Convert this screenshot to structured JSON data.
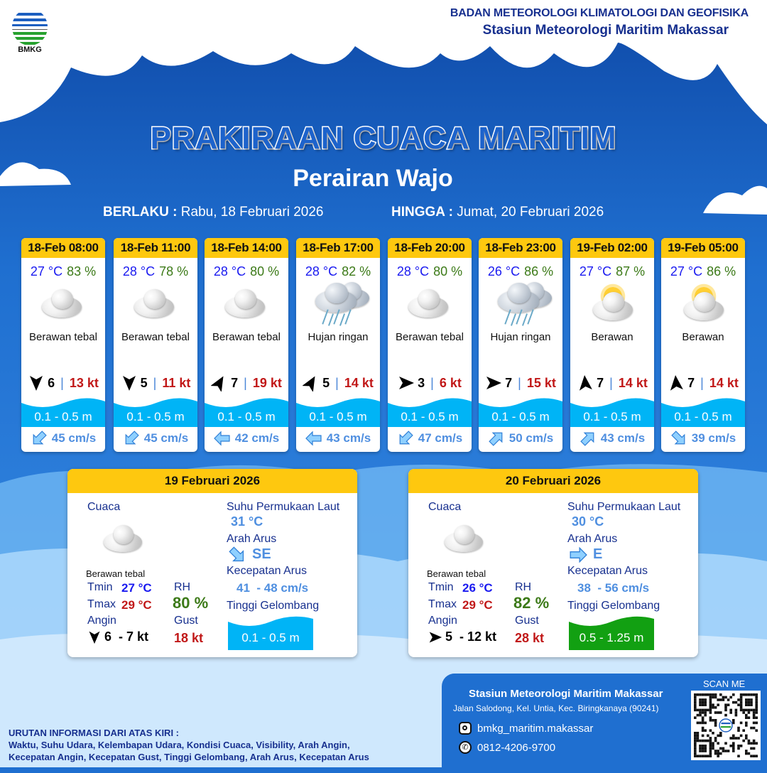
{
  "header": {
    "logo_text": "BMKG",
    "org_line1": "BADAN METEOROLOGI KLIMATOLOGI DAN GEOFISIKA",
    "org_line2": "Stasiun Meteorologi Maritim Makassar"
  },
  "title": "PRAKIRAAN CUACA MARITIM",
  "subtitle": "Perairan Wajo",
  "validity": {
    "from_label": "BERLAKU :",
    "from_value": "Rabu, 18 Februari 2026",
    "to_label": "HINGGA :",
    "to_value": "Jumat, 20 Februari 2026"
  },
  "colors": {
    "header_yellow": "#fec80f",
    "wave_blue": "#00b4f6",
    "wave_green": "#12a012",
    "temp_blue": "#1a1af0",
    "rh_green": "#3c7a18",
    "gust_red": "#c11818"
  },
  "forecasts": [
    {
      "time": "18-Feb 08:00",
      "temp": "27 °C",
      "rh": "83 %",
      "icon": "cloudy-icon",
      "weather": "Berawan tebal",
      "wind_dir": "S",
      "wind_speed": "6",
      "gust": "13 kt",
      "wave": "0.1 - 0.5 m",
      "current_dir": "SW",
      "current_speed": "45 cm/s"
    },
    {
      "time": "18-Feb 11:00",
      "temp": "28 °C",
      "rh": "78 %",
      "icon": "cloudy-icon",
      "weather": "Berawan tebal",
      "wind_dir": "S",
      "wind_speed": "5",
      "gust": "11 kt",
      "wave": "0.1 - 0.5 m",
      "current_dir": "SW",
      "current_speed": "45 cm/s"
    },
    {
      "time": "18-Feb 14:00",
      "temp": "28 °C",
      "rh": "80 %",
      "icon": "cloudy-icon",
      "weather": "Berawan tebal",
      "wind_dir": "NE",
      "wind_speed": "7",
      "gust": "19 kt",
      "wave": "0.1 - 0.5 m",
      "current_dir": "W",
      "current_speed": "42 cm/s"
    },
    {
      "time": "18-Feb 17:00",
      "temp": "28 °C",
      "rh": "82 %",
      "icon": "rain-icon",
      "weather": "Hujan ringan",
      "wind_dir": "NE",
      "wind_speed": "5",
      "gust": "14 kt",
      "wave": "0.1 - 0.5 m",
      "current_dir": "W",
      "current_speed": "43 cm/s"
    },
    {
      "time": "18-Feb 20:00",
      "temp": "28 °C",
      "rh": "80 %",
      "icon": "cloudy-icon",
      "weather": "Berawan tebal",
      "wind_dir": "E",
      "wind_speed": "3",
      "gust": "6 kt",
      "wave": "0.1 - 0.5 m",
      "current_dir": "SW",
      "current_speed": "47 cm/s"
    },
    {
      "time": "18-Feb 23:00",
      "temp": "26 °C",
      "rh": "86 %",
      "icon": "rain-icon",
      "weather": "Hujan ringan",
      "wind_dir": "E",
      "wind_speed": "7",
      "gust": "15 kt",
      "wave": "0.1 - 0.5 m",
      "current_dir": "NE",
      "current_speed": "50 cm/s"
    },
    {
      "time": "19-Feb 02:00",
      "temp": "27 °C",
      "rh": "87 %",
      "icon": "partly-cloudy-icon",
      "weather": "Berawan",
      "wind_dir": "N",
      "wind_speed": "7",
      "gust": "14 kt",
      "wave": "0.1 - 0.5 m",
      "current_dir": "NE",
      "current_speed": "43 cm/s"
    },
    {
      "time": "19-Feb 05:00",
      "temp": "27 °C",
      "rh": "86 %",
      "icon": "partly-cloudy-icon",
      "weather": "Berawan",
      "wind_dir": "N",
      "wind_speed": "7",
      "gust": "14 kt",
      "wave": "0.1 - 0.5 m",
      "current_dir": "SE",
      "current_speed": "39 cm/s"
    }
  ],
  "daily": [
    {
      "date": "19 Februari 2026",
      "weather_label": "Cuaca",
      "weather": "Berawan tebal",
      "tmin_label": "Tmin",
      "tmin": "27 °C",
      "tmax_label": "Tmax",
      "tmax": "29 °C",
      "rh_label": "RH",
      "rh": "80 %",
      "wind_label": "Angin",
      "wind_dir": "S",
      "wind": "6  - 7 kt",
      "gust_label": "Gust",
      "gust": "18 kt",
      "sst_label": "Suhu Permukaan Laut",
      "sst": "31 °C",
      "current_dir_label": "Arah Arus",
      "current_dir": "SE",
      "current_speed_label": "Kecepatan Arus",
      "current_speed": "41  - 48 cm/s",
      "wave_label": "Tinggi Gelombang",
      "wave": "0.1 - 0.5 m",
      "wave_color": "#00b4f6"
    },
    {
      "date": "20 Februari 2026",
      "weather_label": "Cuaca",
      "weather": "Berawan tebal",
      "tmin_label": "Tmin",
      "tmin": "26 °C",
      "tmax_label": "Tmax",
      "tmax": "29 °C",
      "rh_label": "RH",
      "rh": "82 %",
      "wind_label": "Angin",
      "wind_dir": "E",
      "wind": "5  - 12 kt",
      "gust_label": "Gust",
      "gust": "28 kt",
      "sst_label": "Suhu Permukaan Laut",
      "sst": "30 °C",
      "current_dir_label": "Arah Arus",
      "current_dir": "E",
      "current_speed_label": "Kecepatan Arus",
      "current_speed": "38  - 56 cm/s",
      "wave_label": "Tinggi Gelombang",
      "wave": "0.5 - 1.25 m",
      "wave_color": "#12a012"
    }
  ],
  "contact": {
    "station": "Stasiun Meteorologi Maritim Makassar",
    "address": "Jalan Salodong, Kel. Untia, Kec. Biringkanaya (90241)",
    "instagram": "bmkg_maritim.makassar",
    "phone": "0812-4206-9700",
    "scan_label": "SCAN ME"
  },
  "legend": {
    "title": "URUTAN INFORMASI DARI ATAS KIRI :",
    "line1": "Waktu, Suhu Udara, Kelembapan Udara, Kondisi Cuaca, Visibility, Arah Angin,",
    "line2": "Kecepatan Angin, Kecepatan Gust, Tinggi Gelombang, Arah Arus, Kecepatan Arus"
  }
}
